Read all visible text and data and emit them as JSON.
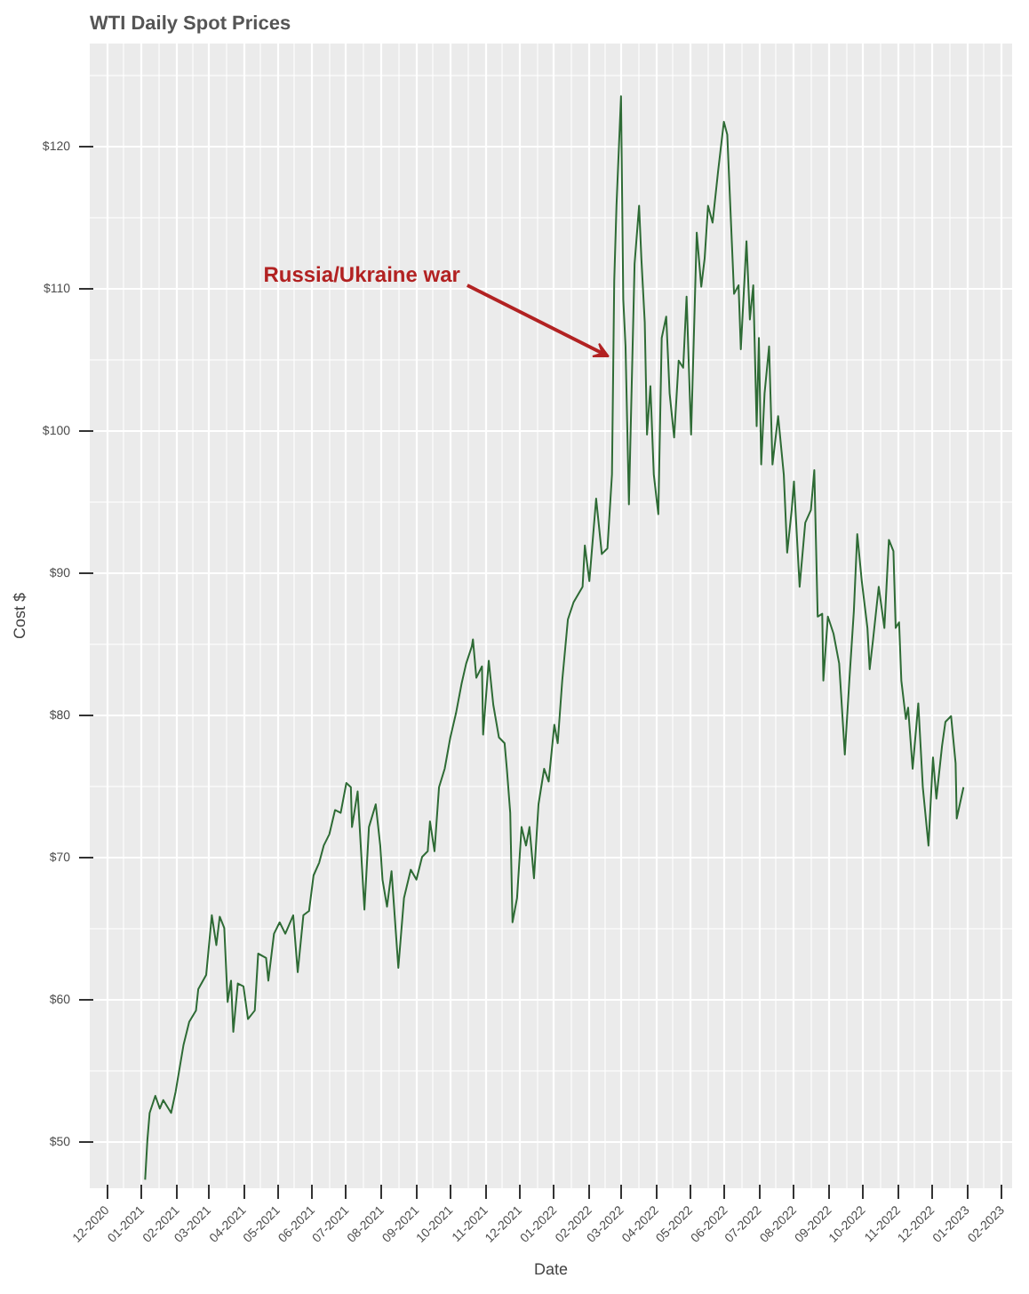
{
  "chart_data": {
    "type": "line",
    "title": "WTI Daily Spot Prices",
    "xlabel": "Date",
    "ylabel": "Cost $",
    "x": [
      "2021-01-04",
      "2021-01-06",
      "2021-01-08",
      "2021-01-13",
      "2021-01-17",
      "2021-01-20",
      "2021-01-27",
      "2021-01-31",
      "2021-02-07",
      "2021-02-12",
      "2021-02-18",
      "2021-02-20",
      "2021-02-27",
      "2021-03-04",
      "2021-03-08",
      "2021-03-11",
      "2021-03-15",
      "2021-03-18",
      "2021-03-21",
      "2021-03-23",
      "2021-03-27",
      "2021-04-01",
      "2021-04-05",
      "2021-04-11",
      "2021-04-14",
      "2021-04-21",
      "2021-04-23",
      "2021-04-28",
      "2021-05-03",
      "2021-05-08",
      "2021-05-15",
      "2021-05-19",
      "2021-05-24",
      "2021-05-29",
      "2021-06-02",
      "2021-06-07",
      "2021-06-11",
      "2021-06-16",
      "2021-06-21",
      "2021-06-26",
      "2021-07-01",
      "2021-07-05",
      "2021-07-06",
      "2021-07-11",
      "2021-07-17",
      "2021-07-21",
      "2021-07-27",
      "2021-07-31",
      "2021-08-02",
      "2021-08-06",
      "2021-08-10",
      "2021-08-16",
      "2021-08-21",
      "2021-08-27",
      "2021-09-01",
      "2021-09-06",
      "2021-09-11",
      "2021-09-13",
      "2021-09-17",
      "2021-09-21",
      "2021-09-26",
      "2021-10-01",
      "2021-10-06",
      "2021-10-11",
      "2021-10-15",
      "2021-10-20",
      "2021-10-21",
      "2021-10-24",
      "2021-10-29",
      "2021-10-30",
      "2021-11-04",
      "2021-11-08",
      "2021-11-13",
      "2021-11-18",
      "2021-11-20",
      "2021-11-23",
      "2021-11-25",
      "2021-11-29",
      "2021-12-03",
      "2021-12-07",
      "2021-12-10",
      "2021-12-14",
      "2021-12-18",
      "2021-12-23",
      "2021-12-27",
      "2022-01-01",
      "2022-01-04",
      "2022-01-08",
      "2022-01-13",
      "2022-01-18",
      "2022-01-26",
      "2022-01-28",
      "2022-02-01",
      "2022-02-07",
      "2022-02-12",
      "2022-02-17",
      "2022-02-21",
      "2022-02-23",
      "2022-02-25",
      "2022-03-01",
      "2022-03-03",
      "2022-03-05",
      "2022-03-08",
      "2022-03-13",
      "2022-03-17",
      "2022-03-19",
      "2022-03-22",
      "2022-03-24",
      "2022-03-27",
      "2022-03-30",
      "2022-04-03",
      "2022-04-06",
      "2022-04-10",
      "2022-04-13",
      "2022-04-17",
      "2022-04-21",
      "2022-04-25",
      "2022-04-28",
      "2022-05-02",
      "2022-05-07",
      "2022-05-11",
      "2022-05-14",
      "2022-05-17",
      "2022-05-21",
      "2022-05-26",
      "2022-05-31",
      "2022-06-03",
      "2022-06-07",
      "2022-06-09",
      "2022-06-13",
      "2022-06-15",
      "2022-06-20",
      "2022-06-23",
      "2022-06-26",
      "2022-06-29",
      "2022-07-01",
      "2022-07-03",
      "2022-07-06",
      "2022-07-10",
      "2022-07-13",
      "2022-07-18",
      "2022-07-23",
      "2022-07-26",
      "2022-07-30",
      "2022-08-01",
      "2022-08-06",
      "2022-08-11",
      "2022-08-16",
      "2022-08-19",
      "2022-08-22",
      "2022-08-26",
      "2022-08-27",
      "2022-08-31",
      "2022-09-05",
      "2022-09-10",
      "2022-09-15",
      "2022-09-19",
      "2022-09-23",
      "2022-09-26",
      "2022-09-30",
      "2022-10-05",
      "2022-10-07",
      "2022-10-10",
      "2022-10-15",
      "2022-10-20",
      "2022-10-24",
      "2022-10-28",
      "2022-10-30",
      "2022-11-02",
      "2022-11-04",
      "2022-11-08",
      "2022-11-10",
      "2022-11-14",
      "2022-11-19",
      "2022-11-23",
      "2022-11-28",
      "2022-12-02",
      "2022-12-05",
      "2022-12-10",
      "2022-12-13",
      "2022-12-18",
      "2022-12-22",
      "2022-12-23",
      "2022-12-29"
    ],
    "series": [
      {
        "color": "#2e6b35",
        "values": [
          47.4,
          50.2,
          52.1,
          53.3,
          52.4,
          53.0,
          52.1,
          53.6,
          56.9,
          58.5,
          59.3,
          60.8,
          61.8,
          66.0,
          63.9,
          65.9,
          65.1,
          59.9,
          61.4,
          57.8,
          61.2,
          61.0,
          58.7,
          59.3,
          63.3,
          63.0,
          61.4,
          64.7,
          65.5,
          64.7,
          66.0,
          62.0,
          66.0,
          66.3,
          68.8,
          69.7,
          70.9,
          71.7,
          73.4,
          73.2,
          75.3,
          75.0,
          72.2,
          74.7,
          66.4,
          72.2,
          73.8,
          70.9,
          68.5,
          66.6,
          69.1,
          62.3,
          67.2,
          69.2,
          68.5,
          70.1,
          70.5,
          72.6,
          70.5,
          75.0,
          76.3,
          78.5,
          80.2,
          82.3,
          83.7,
          84.9,
          85.4,
          82.7,
          83.5,
          78.7,
          83.9,
          80.8,
          78.5,
          78.1,
          76.3,
          73.2,
          65.5,
          67.2,
          72.2,
          70.9,
          72.2,
          68.6,
          73.8,
          76.3,
          75.4,
          79.4,
          78.1,
          82.5,
          86.8,
          88.0,
          89.1,
          92.0,
          89.5,
          95.3,
          91.4,
          91.8,
          97.0,
          110.6,
          115.9,
          123.6,
          109.3,
          106.0,
          94.9,
          111.8,
          115.9,
          112.2,
          107.7,
          99.8,
          103.2,
          97.0,
          94.2,
          106.6,
          108.1,
          102.7,
          99.6,
          105.0,
          104.5,
          109.5,
          99.8,
          114.0,
          110.2,
          112.2,
          115.9,
          114.7,
          118.4,
          121.8,
          120.9,
          113.4,
          109.7,
          110.3,
          105.8,
          113.4,
          107.9,
          110.3,
          100.4,
          106.6,
          97.7,
          102.7,
          106.0,
          97.7,
          101.1,
          97.0,
          91.5,
          94.5,
          96.5,
          89.1,
          93.6,
          94.5,
          97.3,
          87.0,
          87.2,
          82.5,
          87.0,
          85.8,
          83.7,
          77.3,
          82.5,
          87.4,
          92.8,
          89.5,
          86.2,
          83.3,
          85.4,
          89.1,
          86.2,
          92.4,
          91.6,
          86.2,
          86.6,
          82.5,
          79.8,
          80.6,
          76.3,
          80.9,
          75.0,
          70.9,
          77.1,
          74.2,
          77.9,
          79.6,
          80.0,
          76.7,
          72.8,
          75.0
        ]
      }
    ],
    "xlim": [
      "2020-11-16",
      "2023-02-10"
    ],
    "xticks": [
      {
        "value": "2020-12-01",
        "label": "12-2020"
      },
      {
        "value": "2021-01-01",
        "label": "01-2021"
      },
      {
        "value": "2021-02-01",
        "label": "02-2021"
      },
      {
        "value": "2021-03-01",
        "label": "03-2021"
      },
      {
        "value": "2021-04-01",
        "label": "04-2021"
      },
      {
        "value": "2021-05-01",
        "label": "05-2021"
      },
      {
        "value": "2021-06-01",
        "label": "06-2021"
      },
      {
        "value": "2021-07-01",
        "label": "07-2021"
      },
      {
        "value": "2021-08-01",
        "label": "08-2021"
      },
      {
        "value": "2021-09-01",
        "label": "09-2021"
      },
      {
        "value": "2021-10-01",
        "label": "10-2021"
      },
      {
        "value": "2021-11-01",
        "label": "11-2021"
      },
      {
        "value": "2021-12-01",
        "label": "12-2021"
      },
      {
        "value": "2022-01-01",
        "label": "01-2022"
      },
      {
        "value": "2022-02-01",
        "label": "02-2022"
      },
      {
        "value": "2022-03-01",
        "label": "03-2022"
      },
      {
        "value": "2022-04-01",
        "label": "04-2022"
      },
      {
        "value": "2022-05-01",
        "label": "05-2022"
      },
      {
        "value": "2022-06-01",
        "label": "06-2022"
      },
      {
        "value": "2022-07-01",
        "label": "07-2022"
      },
      {
        "value": "2022-08-01",
        "label": "08-2022"
      },
      {
        "value": "2022-09-01",
        "label": "09-2022"
      },
      {
        "value": "2022-10-01",
        "label": "10-2022"
      },
      {
        "value": "2022-11-01",
        "label": "11-2022"
      },
      {
        "value": "2022-12-01",
        "label": "12-2022"
      },
      {
        "value": "2023-01-01",
        "label": "01-2023"
      },
      {
        "value": "2023-02-01",
        "label": "02-2023"
      }
    ],
    "ylim": [
      46.8,
      127.3
    ],
    "yticks": [
      {
        "value": 50,
        "label": "$50"
      },
      {
        "value": 60,
        "label": "$60"
      },
      {
        "value": 70,
        "label": "$70"
      },
      {
        "value": 80,
        "label": "$80"
      },
      {
        "value": 90,
        "label": "$90"
      },
      {
        "value": 100,
        "label": "$100"
      },
      {
        "value": 110,
        "label": "$110"
      },
      {
        "value": 120,
        "label": "$120"
      }
    ],
    "grid": true,
    "line_style": "solid",
    "marker": "none",
    "annotations": [
      {
        "text": "Russia/Ukraine war",
        "x": "2022-02-18",
        "y": 105.3
      }
    ]
  }
}
